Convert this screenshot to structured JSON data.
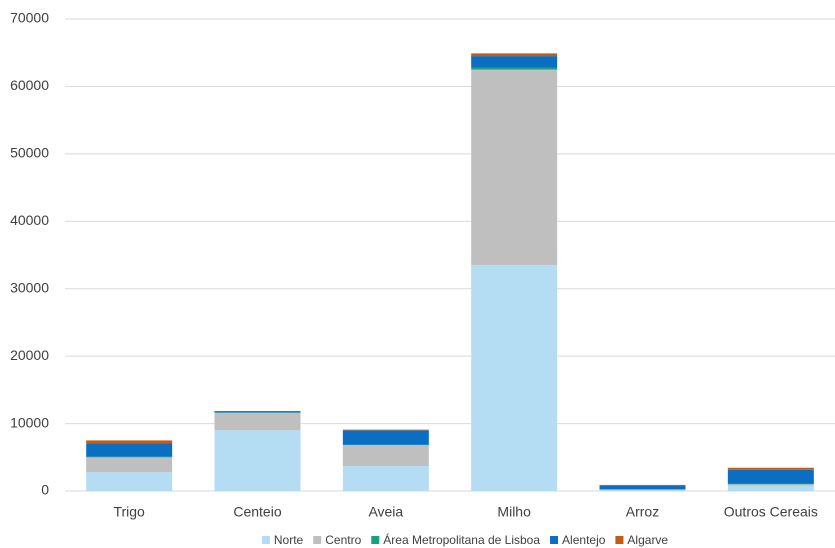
{
  "chart_data": {
    "type": "stacked_bar",
    "categories": [
      "Trigo",
      "Centeio",
      "Aveia",
      "Milho",
      "Arroz",
      "Outros Cereais"
    ],
    "series": [
      {
        "name": "Norte",
        "color": "#b4dcf2",
        "values": [
          2800,
          9000,
          3700,
          33500,
          100,
          800
        ]
      },
      {
        "name": "Centro",
        "color": "#bfbfbf",
        "values": [
          2200,
          2600,
          3100,
          29000,
          100,
          200
        ]
      },
      {
        "name": "Área Metropolitana de Lisboa",
        "color": "#16a37a",
        "values": [
          100,
          50,
          50,
          300,
          50,
          50
        ]
      },
      {
        "name": "Alentejo",
        "color": "#0a6fc2",
        "values": [
          2000,
          200,
          2150,
          1700,
          600,
          2100
        ]
      },
      {
        "name": "Algarve",
        "color": "#c55a11",
        "values": [
          400,
          0,
          100,
          400,
          50,
          300
        ]
      }
    ],
    "ylim": [
      0,
      70000
    ],
    "yticks": [
      0,
      10000,
      20000,
      30000,
      40000,
      50000,
      60000,
      70000
    ],
    "grid": true,
    "legend": "bottom"
  }
}
